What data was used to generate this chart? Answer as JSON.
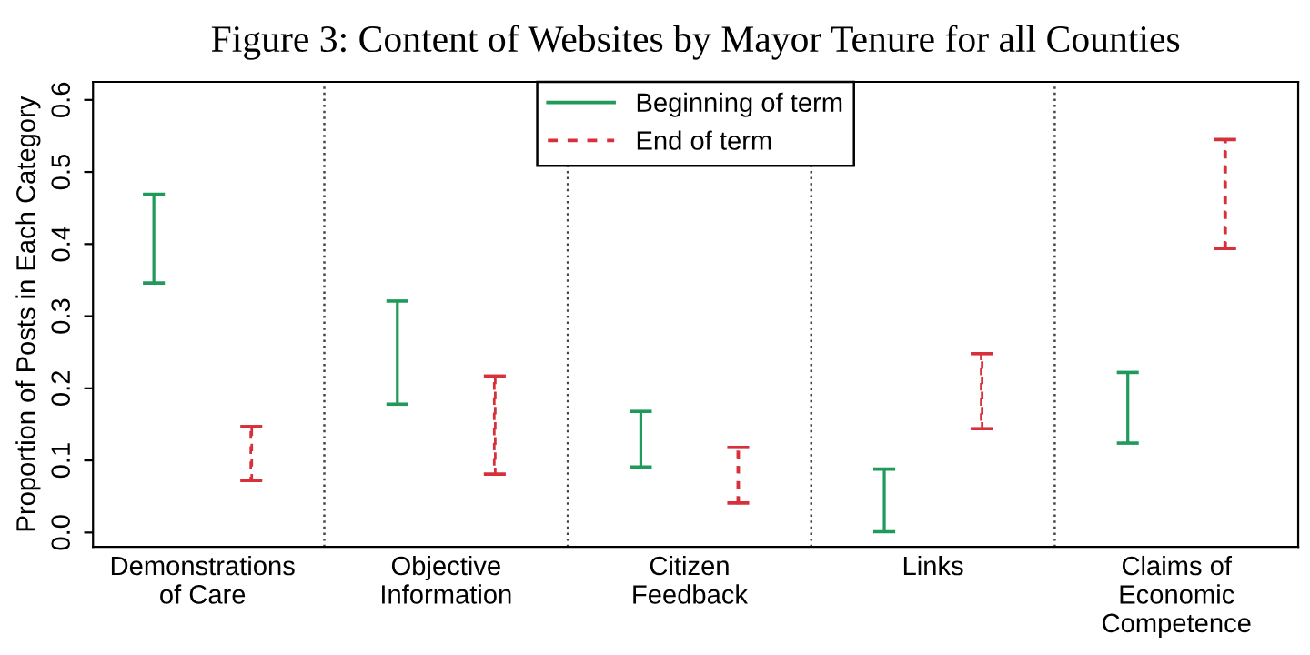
{
  "chart_data": {
    "type": "bar",
    "title": "Figure 3: Content of Websites by Mayor Tenure for all Counties",
    "ylabel": "Proportion of Posts in Each Category",
    "categories": [
      "Demonstrations\nof Care",
      "Objective\nInformation",
      "Citizen\nFeedback",
      "Links",
      "Claims of\nEconomic\nCompetence"
    ],
    "series": [
      {
        "name": "Beginning of term",
        "color": "#1f9a5a",
        "line_style": "solid",
        "base": [
          0.346,
          0.178,
          0.091,
          0.001,
          0.124
        ],
        "values": [
          0.123,
          0.143,
          0.077,
          0.087,
          0.098
        ]
      },
      {
        "name": "End of term",
        "color": "#d7303a",
        "line_style": "dashed",
        "base": [
          0.072,
          0.081,
          0.041,
          0.144,
          0.394
        ],
        "values": [
          0.075,
          0.136,
          0.077,
          0.104,
          0.151
        ]
      }
    ],
    "legend": "top",
    "grid": false,
    "ylim": [
      -0.02,
      0.625
    ],
    "yticks": [
      {
        "value": 0,
        "label": "0.0"
      },
      0.1,
      0.2,
      0.3,
      0.4,
      0.5,
      0.6
    ]
  }
}
